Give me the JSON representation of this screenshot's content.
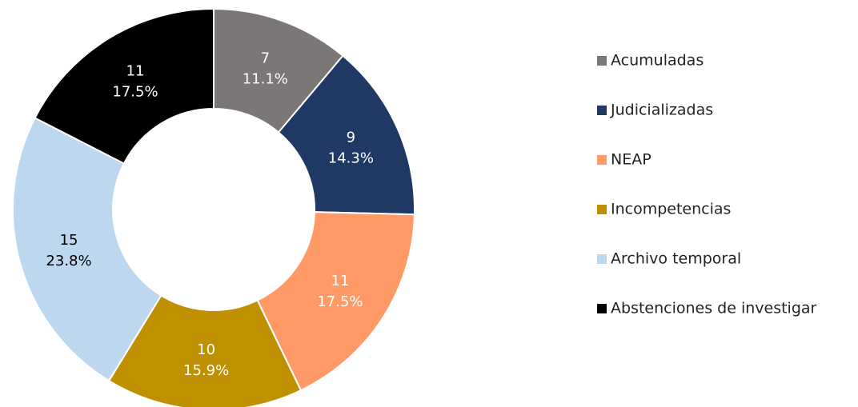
{
  "chart_data": {
    "type": "donut",
    "categories": [
      "Acumuladas",
      "Judicializadas",
      "NEAP",
      "Incompetencias",
      "Archivo temporal",
      "Abstenciones de investigar"
    ],
    "values": [
      7,
      9,
      11,
      10,
      15,
      11
    ],
    "percent_labels": [
      "11.1%",
      "14.3%",
      "17.5%",
      "15.9%",
      "23.8%",
      "17.5%"
    ],
    "colors": [
      "#7b7776",
      "#1f3864",
      "#ff9966",
      "#bf9000",
      "#bdd7ee",
      "#000000"
    ],
    "legend": "right"
  }
}
